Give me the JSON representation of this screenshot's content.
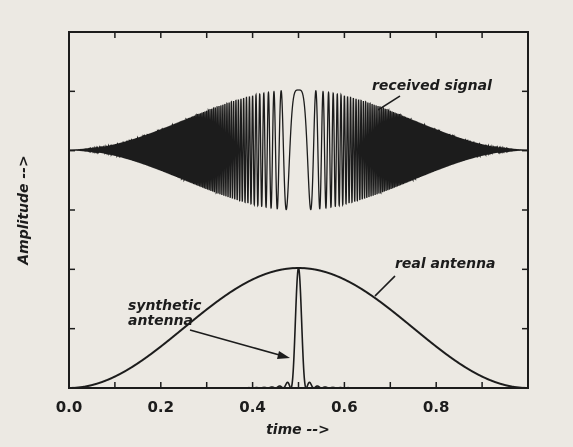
{
  "chart_data": {
    "type": "line",
    "title": "",
    "xlabel": "time -->",
    "ylabel": "Amplitude -->",
    "xlim": [
      0.0,
      1.0
    ],
    "x_ticks": [
      "0.0",
      "0.2",
      "0.4",
      "0.6",
      "0.8"
    ],
    "x_tick_values": [
      0.0,
      0.2,
      0.4,
      0.6,
      0.8
    ],
    "grid": false,
    "legend": "none",
    "colors": {
      "background": "#ece9e3",
      "ink": "#1c1c1c"
    },
    "annotations": {
      "received": "received signal",
      "real": "real antenna",
      "synthetic_line1": "synthetic",
      "synthetic_line2": "antenna"
    },
    "series": [
      {
        "curve": "received",
        "description": "chirp burst, amplitude envelope follows real antenna pattern",
        "envelope_peak": 1.0,
        "center": 0.5
      },
      {
        "curve": "real",
        "description": "broad beam pattern",
        "x": [
          0.0,
          0.1,
          0.2,
          0.3,
          0.4,
          0.5,
          0.6,
          0.7,
          0.8,
          0.9,
          1.0
        ],
        "y": [
          0.0,
          0.1,
          0.35,
          0.65,
          0.9,
          1.0,
          0.9,
          0.65,
          0.35,
          0.1,
          0.0
        ]
      },
      {
        "curve": "synthetic",
        "description": "narrow compressed pulse with sidelobes",
        "x": [
          0.44,
          0.47,
          0.49,
          0.5,
          0.51,
          0.53,
          0.56
        ],
        "y": [
          0.03,
          0.1,
          0.2,
          0.98,
          0.2,
          0.1,
          0.03
        ]
      }
    ]
  }
}
